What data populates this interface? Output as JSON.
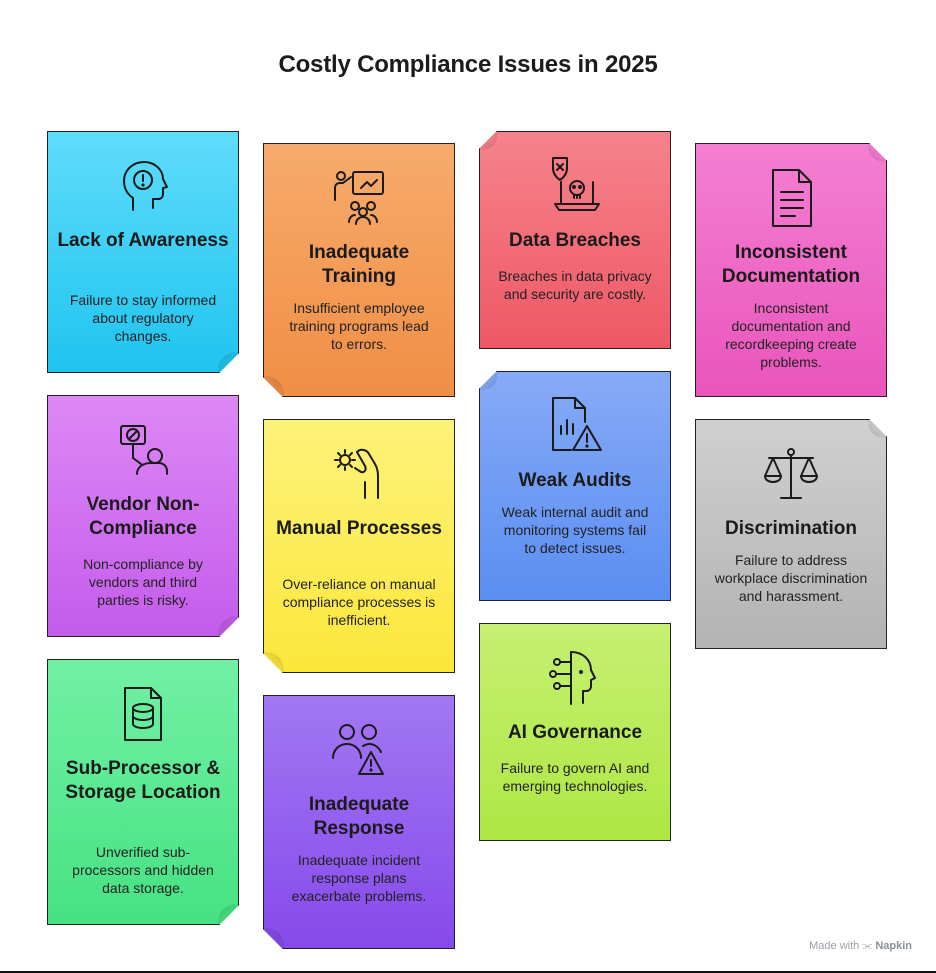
{
  "title": "Costly Compliance Issues in 2025",
  "cards": [
    {
      "title": "Lack of Awareness",
      "desc": "Failure to stay informed about regulatory changes.",
      "icon": "head-alert-icon",
      "color": "#22c8f0"
    },
    {
      "title": "Inadequate Training",
      "desc": "Insufficient employee training programs lead to errors.",
      "icon": "training-icon",
      "color": "#f49a55"
    },
    {
      "title": "Data Breaches",
      "desc": "Breaches in data privacy and security are costly.",
      "icon": "breach-icon",
      "color": "#f0606c"
    },
    {
      "title": "Inconsistent Documentation",
      "desc": "Inconsistent documentation and recordkeeping create problems.",
      "icon": "document-icon",
      "color": "#ee64c4"
    },
    {
      "title": "Vendor Non-Compliance",
      "desc": "Non-compliance by vendors and third parties is risky.",
      "icon": "vendor-icon",
      "color": "#cc66ee"
    },
    {
      "title": "Manual Processes",
      "desc": "Over-reliance on manual compliance processes is inefficient.",
      "icon": "manual-gear-icon",
      "color": "#fbe94a"
    },
    {
      "title": "Weak Audits",
      "desc": "Weak internal audit and monitoring systems fail to detect issues.",
      "icon": "audit-warning-icon",
      "color": "#6f9bf4"
    },
    {
      "title": "Discrimination",
      "desc": "Failure to address workplace discrimination and harassment.",
      "icon": "scales-icon",
      "color": "#bdbdbd"
    },
    {
      "title": "Sub-Processor & Storage Location",
      "desc": "Unverified sub-processors and hidden data storage.",
      "icon": "database-file-icon",
      "color": "#4ee88a"
    },
    {
      "title": "Inadequate Response",
      "desc": "Inadequate incident response plans exacerbate problems.",
      "icon": "people-warning-icon",
      "color": "#8f58ee"
    },
    {
      "title": "AI Governance",
      "desc": "Failure to govern AI and emerging technologies.",
      "icon": "ai-head-icon",
      "color": "#b5ec4e"
    }
  ],
  "footer": {
    "made_with": "Made with",
    "brand": "Napkin"
  }
}
